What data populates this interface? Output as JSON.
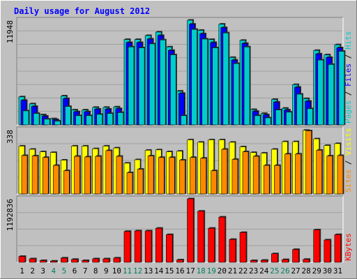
{
  "chart_data": [
    {
      "type": "bar",
      "title": "Daily usage for August 2012",
      "categories": [
        "1",
        "2",
        "3",
        "4",
        "5",
        "6",
        "7",
        "8",
        "9",
        "10",
        "11",
        "12",
        "13",
        "14",
        "15",
        "16",
        "17",
        "18",
        "19",
        "20",
        "21",
        "22",
        "23",
        "24",
        "25",
        "26",
        "27",
        "28",
        "29",
        "30",
        "31"
      ],
      "weekend_days": [
        "4",
        "5",
        "11",
        "12",
        "18",
        "19",
        "25",
        "26"
      ],
      "ylabel_parts": [
        "Pages",
        "Files",
        "Hits"
      ],
      "ylabel_separator": " / ",
      "max_label": "11948",
      "ylim": [
        0,
        11948
      ],
      "series": [
        {
          "name": "Hits",
          "values": [
            3200,
            2400,
            1150,
            700,
            3300,
            1700,
            1700,
            2000,
            2000,
            2050,
            9750,
            9750,
            10200,
            10600,
            8900,
            3850,
            11948,
            10800,
            9750,
            11500,
            7700,
            9650,
            1750,
            1300,
            2900,
            1900,
            4600,
            3000,
            8500,
            8000,
            9150
          ]
        },
        {
          "name": "Files",
          "values": [
            2800,
            2100,
            1000,
            600,
            3000,
            1500,
            1500,
            1800,
            1800,
            1850,
            9400,
            9400,
            9800,
            10200,
            8500,
            3600,
            11500,
            10400,
            9400,
            11100,
            7400,
            9300,
            1550,
            1150,
            2600,
            1700,
            4300,
            2700,
            8100,
            7700,
            8800
          ]
        },
        {
          "name": "Pages",
          "values": [
            1600,
            1300,
            650,
            430,
            2100,
            1050,
            1050,
            1200,
            1300,
            1400,
            8900,
            8800,
            9250,
            9700,
            8000,
            1050,
            10900,
            9800,
            8800,
            10500,
            7000,
            8900,
            1050,
            800,
            1700,
            1450,
            3500,
            1850,
            7400,
            6900,
            8400
          ]
        }
      ],
      "colors": {
        "Hits": "#00cccc",
        "Files": "#0000ff",
        "Pages": "#00cccc"
      }
    },
    {
      "type": "bar",
      "categories": [
        "1",
        "2",
        "3",
        "4",
        "5",
        "6",
        "7",
        "8",
        "9",
        "10",
        "11",
        "12",
        "13",
        "14",
        "15",
        "16",
        "17",
        "18",
        "19",
        "20",
        "21",
        "22",
        "23",
        "24",
        "25",
        "26",
        "27",
        "28",
        "29",
        "30",
        "31"
      ],
      "ylabel_parts": [
        "Sites",
        "Visits"
      ],
      "ylabel_separator": " / ",
      "max_label": "338",
      "ylim": [
        0,
        338
      ],
      "series": [
        {
          "name": "Visits",
          "values": [
            252,
            235,
            222,
            218,
            178,
            252,
            252,
            238,
            252,
            242,
            162,
            180,
            230,
            232,
            222,
            225,
            285,
            272,
            285,
            285,
            272,
            248,
            218,
            215,
            235,
            275,
            275,
            335,
            290,
            255,
            265
          ]
        },
        {
          "name": "Sites",
          "values": [
            202,
            200,
            192,
            150,
            122,
            198,
            195,
            198,
            228,
            198,
            112,
            130,
            200,
            192,
            192,
            178,
            192,
            188,
            122,
            235,
            182,
            222,
            198,
            150,
            150,
            210,
            210,
            332,
            230,
            200,
            202
          ]
        }
      ],
      "colors": {
        "Visits": "#ffff00",
        "Sites": "#ff8800"
      }
    },
    {
      "type": "bar",
      "categories": [
        "1",
        "2",
        "3",
        "4",
        "5",
        "6",
        "7",
        "8",
        "9",
        "10",
        "11",
        "12",
        "13",
        "14",
        "15",
        "16",
        "17",
        "18",
        "19",
        "20",
        "21",
        "22",
        "23",
        "24",
        "25",
        "26",
        "27",
        "28",
        "29",
        "30",
        "31"
      ],
      "ylabel_parts": [
        "KBytes"
      ],
      "ylabel_separator": "",
      "max_label": "1192836",
      "ylim": [
        0,
        1192836
      ],
      "series": [
        {
          "name": "KBytes",
          "values": [
            110000,
            65000,
            32000,
            22000,
            80000,
            55000,
            32000,
            65000,
            65000,
            80000,
            580000,
            590000,
            590000,
            640000,
            520000,
            45000,
            1192836,
            960000,
            640000,
            850000,
            430000,
            560000,
            32000,
            38000,
            160000,
            50000,
            240000,
            55000,
            610000,
            420000,
            520000
          ]
        }
      ],
      "colors": {
        "KBytes": "#ff0000"
      }
    }
  ]
}
